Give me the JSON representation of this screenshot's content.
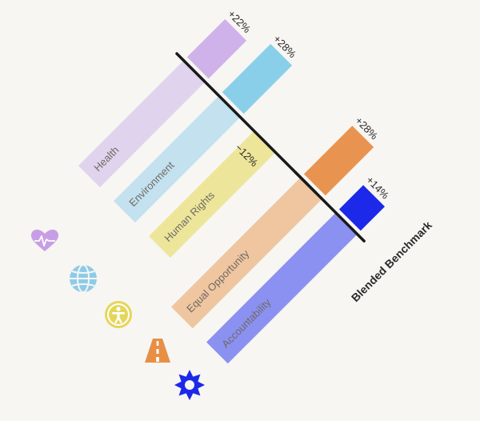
{
  "chart_data": {
    "type": "bar",
    "orientation": "rotated-45",
    "benchmark_label": "Blended Benchmark",
    "categories": [
      "Health",
      "Environment",
      "Human Rights",
      "Equal Opportunity",
      "Accountability"
    ],
    "icons": [
      "heart-pulse-icon",
      "globe-icon",
      "accessibility-icon",
      "road-icon",
      "sun-icon"
    ],
    "colors": {
      "benchmark_line": "#1a1a1a",
      "text": "#2a2a2a",
      "bars": [
        "#e0d3ee",
        "#c3e1ef",
        "#ede69a",
        "#efc6a0",
        "#8b91f0"
      ],
      "deltas": [
        "#cfb2ea",
        "#8acfea",
        "#ede69a",
        "#e89450",
        "#1c29e8"
      ],
      "icons": [
        "#c79ee6",
        "#8ecbe9",
        "#e5d65a",
        "#e88f45",
        "#1c29e8"
      ]
    },
    "series": [
      {
        "values": [
          61,
          61,
          61,
          75,
          75
        ]
      },
      {
        "values": [
          22,
          28,
          -12,
          28,
          14
        ]
      }
    ],
    "delta_labels": [
      "+22%",
      "+28%",
      "−12%",
      "+28%",
      "+14%"
    ]
  }
}
